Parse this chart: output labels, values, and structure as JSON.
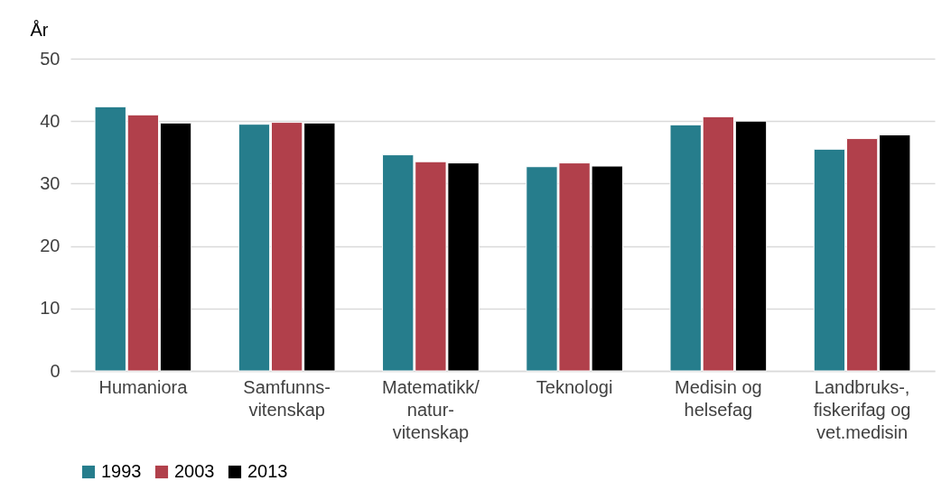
{
  "chart_data": {
    "type": "bar",
    "ylabel": "År",
    "categories": [
      "Humaniora",
      "Samfunns-\nvitenskap",
      "Matematikk/\nnatur-\nvitenskap",
      "Teknologi",
      "Medisin og\nhelsefag",
      "Landbruks-,\nfiskerifag og\nvet.medisin"
    ],
    "series": [
      {
        "name": "1993",
        "color": "#267d8c",
        "values": [
          42.3,
          39.5,
          34.6,
          32.7,
          39.4,
          35.5
        ]
      },
      {
        "name": "2003",
        "color": "#b1404b",
        "values": [
          41.0,
          39.8,
          33.5,
          33.3,
          40.7,
          37.2
        ]
      },
      {
        "name": "2013",
        "color": "#000000",
        "values": [
          39.7,
          39.7,
          33.3,
          32.8,
          40.0,
          37.8
        ]
      }
    ],
    "ylim": [
      0,
      50
    ],
    "yticks": [
      0,
      10,
      20,
      30,
      40,
      50
    ],
    "grid": "y",
    "legend": "bottom left"
  }
}
